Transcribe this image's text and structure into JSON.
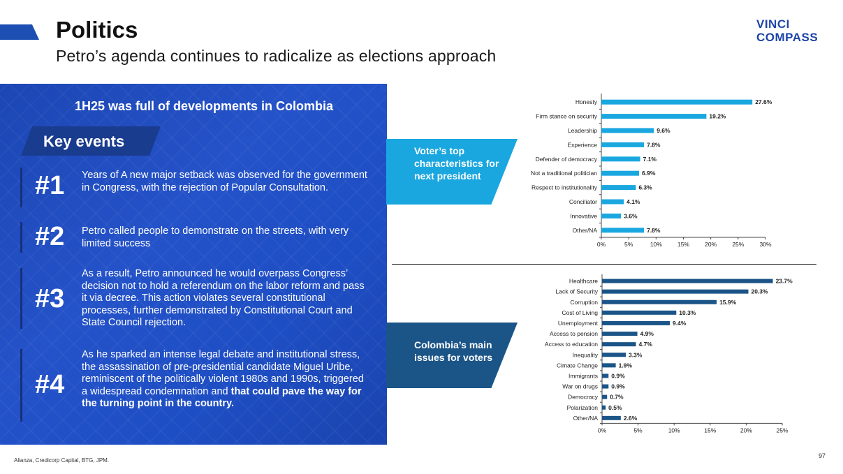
{
  "header": {
    "title": "Politics",
    "subtitle": "Petro’s agenda continues to radicalize as elections approach",
    "logo_line1": "VINCI",
    "logo_line2": "COMPASS"
  },
  "colors": {
    "brand_blue": "#1c45a8",
    "panel_blue": "#2452c8",
    "cyan_bar": "#1aa7e0",
    "navy_bar": "#1b5487"
  },
  "panel": {
    "heading": "1H25 was full of developments in Colombia",
    "key_events_label": "Key events",
    "events": [
      {
        "number": "#1",
        "text": "Years of A new major setback was observed for the government in Congress, with the rejection of Popular Consultation."
      },
      {
        "number": "#2",
        "text": "Petro called people to demonstrate on the streets, with very limited success"
      },
      {
        "number": "#3",
        "text": "As a result, Petro announced he would overpass Congress’ decision not to hold a referendum on the labor reform and pass it via decree. This action violates several constitutional processes, further demonstrated by Constitutional Court and State Council rejection."
      },
      {
        "number": "#4",
        "text": "As he sparked an intense legal debate and institutional stress, the assassination of pre-presidential candidate Miguel Uribe, reminiscent of the politically violent 1980s and 1990s, triggered a widespread condemnation  and",
        "text_bold": "that could pave the way for the turning point in the country."
      }
    ]
  },
  "callouts": {
    "top": "Voter’s top characteristics for next president",
    "bottom": "Colombia’s main issues for voters"
  },
  "footer": {
    "source": "Alianza, Credicorp Capital, BTG, JPM.",
    "page": "97"
  },
  "chart_data": [
    {
      "type": "bar",
      "orientation": "horizontal",
      "title": "Voter’s top characteristics for next president",
      "categories": [
        "Honesty",
        "Firm stance on security",
        "Leadership",
        "Experience",
        "Defender of democracy",
        "Not a traditional politician",
        "Respect to institutionality",
        "Conciliator",
        "Innovative",
        "Other/NA"
      ],
      "values": [
        27.6,
        19.2,
        9.6,
        7.8,
        7.1,
        6.9,
        6.3,
        4.1,
        3.6,
        7.8
      ],
      "value_labels": [
        "27.6%",
        "19.2%",
        "9.6%",
        "7.8%",
        "7.1%",
        "6.9%",
        "6.3%",
        "4.1%",
        "3.6%",
        "7.8%"
      ],
      "xlim": [
        0,
        30
      ],
      "xticks": [
        "0%",
        "5%",
        "10%",
        "15%",
        "20%",
        "25%",
        "30%"
      ],
      "color": "#1aa7e0"
    },
    {
      "type": "bar",
      "orientation": "horizontal",
      "title": "Colombia’s main issues for voters",
      "categories": [
        "Healthcare",
        "Lack of Security",
        "Corruption",
        "Cost of Living",
        "Unemployment",
        "Access to pension",
        "Access to education",
        "Inequality",
        "Cimate Change",
        "Immigrants",
        "War on drugs",
        "Democracy",
        "Polarization",
        "Other/NA"
      ],
      "values": [
        23.7,
        20.3,
        15.9,
        10.3,
        9.4,
        4.9,
        4.7,
        3.3,
        1.9,
        0.9,
        0.9,
        0.7,
        0.5,
        2.6
      ],
      "value_labels": [
        "23.7%",
        "20.3%",
        "15.9%",
        "10.3%",
        "9.4%",
        "4.9%",
        "4.7%",
        "3.3%",
        "1.9%",
        "0.9%",
        "0.9%",
        "0.7%",
        "0.5%",
        "2.6%"
      ],
      "xlim": [
        0,
        25
      ],
      "xticks": [
        "0%",
        "5%",
        "10%",
        "15%",
        "20%",
        "25%"
      ],
      "color": "#1b5487"
    }
  ]
}
